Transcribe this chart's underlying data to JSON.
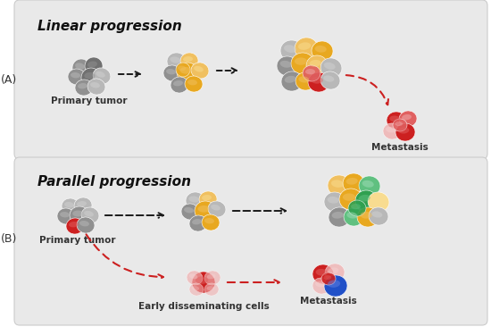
{
  "panel_A_title": "Linear progression",
  "panel_B_title": "Parallel progression",
  "label_A": "(A)",
  "label_B": "(B)",
  "bg_panel": "#e9e9e9",
  "bg_figure": "#ffffff",
  "colors": {
    "gray_dark": "#707070",
    "gray_mid": "#909090",
    "gray_light": "#b8b8b8",
    "gray_vlight": "#d0d0d0",
    "yellow_dark": "#c8900a",
    "yellow_mid": "#e8a820",
    "yellow_light": "#f0c060",
    "yellow_vlight": "#f8dc90",
    "red_dark": "#a01010",
    "red_mid": "#cc2020",
    "red_light": "#e06060",
    "pink_light": "#f0b0b0",
    "pink_vlight": "#f8d8d8",
    "green_dark": "#206030",
    "green_mid": "#30a050",
    "green_light": "#60c080",
    "green_vlight": "#a0ddb8",
    "blue_dark": "#1030a0",
    "blue_mid": "#2050c8",
    "blue_light": "#6080e0",
    "blue_vlight": "#a0b8f0"
  },
  "arrow_black": "#1a1a1a",
  "arrow_red": "#cc2020",
  "texts": {
    "primary_tumor_A": "Primary tumor",
    "metastasis_A": "Metastasis",
    "primary_tumor_B": "Primary tumor",
    "early_disseminating": "Early disseminating cells",
    "metastasis_B": "Metastasis"
  },
  "figsize": [
    5.5,
    3.66
  ],
  "dpi": 100
}
